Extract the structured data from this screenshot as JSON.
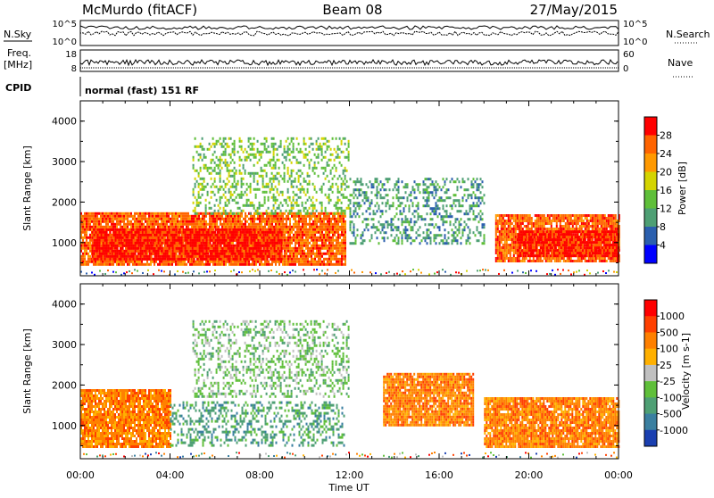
{
  "header": {
    "station": "McMurdo (fitACF)",
    "beam": "Beam 08",
    "date": "27/May/2015"
  },
  "panels": {
    "nsky_label": "N.Sky",
    "nsearch_label": "N.Search",
    "freq_label_1": "Freq.",
    "freq_label_2": "[MHz]",
    "nave_label": "Nave",
    "cpid_label": "CPID",
    "cpid_value": "normal (fast) 151 RF",
    "noise_ticks": [
      "10^5",
      "10^0"
    ],
    "freq_ticks": [
      "18",
      "8"
    ],
    "nave_ticks": [
      "60",
      "0"
    ]
  },
  "chart_data": [
    {
      "type": "heatmap",
      "name": "Power",
      "ylabel": "Slant Range [km]",
      "xlabel": "Time UT",
      "x_ticks": [
        "00:00",
        "04:00",
        "08:00",
        "12:00",
        "16:00",
        "20:00",
        "00:00"
      ],
      "y_ticks": [
        "1000",
        "2000",
        "3000",
        "4000"
      ],
      "xlim_hours": [
        0,
        24
      ],
      "ylim_km": [
        180,
        4500
      ],
      "colorbar": {
        "label": "Power [dB]",
        "ticks": [
          "4",
          "8",
          "12",
          "16",
          "20",
          "24",
          "28"
        ],
        "colors": [
          "#0000ff",
          "#2b5fae",
          "#4e9f74",
          "#5fbf3a",
          "#d4d400",
          "#ff9900",
          "#ff6400",
          "#ff0000"
        ]
      },
      "regions": [
        {
          "t0": 0.0,
          "t1": 11.8,
          "r0": 450,
          "r1": 1750,
          "level": 6
        },
        {
          "t0": 0.5,
          "t1": 9.0,
          "r0": 620,
          "r1": 1350,
          "level": 7
        },
        {
          "t0": 18.5,
          "t1": 24.0,
          "r0": 550,
          "r1": 1700,
          "level": 6
        },
        {
          "t0": 19.5,
          "t1": 24.0,
          "r0": 700,
          "r1": 1300,
          "level": 7
        },
        {
          "t0": 5.0,
          "t1": 12.0,
          "r0": 1700,
          "r1": 3600,
          "level": 3
        },
        {
          "t0": 12.0,
          "t1": 18.0,
          "r0": 1000,
          "r1": 2600,
          "level": 2
        }
      ]
    },
    {
      "type": "heatmap",
      "name": "Velocity",
      "ylabel": "Slant Range [km]",
      "xlabel": "Time UT",
      "x_ticks": [
        "00:00",
        "04:00",
        "08:00",
        "12:00",
        "16:00",
        "20:00",
        "00:00"
      ],
      "y_ticks": [
        "1000",
        "2000",
        "3000",
        "4000"
      ],
      "xlim_hours": [
        0,
        24
      ],
      "ylim_km": [
        180,
        4500
      ],
      "colorbar": {
        "label": "Velocity [m s-1]",
        "ticks": [
          "1000",
          "500",
          "100",
          "25",
          "-25",
          "-100",
          "-500",
          "-1000"
        ],
        "colors": [
          "#1a3fb0",
          "#3a7fa0",
          "#4e9f74",
          "#5fbf3a",
          "#c0c0c0",
          "#ffb000",
          "#ff8000",
          "#ff4000",
          "#ff0000"
        ]
      },
      "regions": [
        {
          "t0": 0.0,
          "t1": 4.0,
          "r0": 450,
          "r1": 1900,
          "level": 6
        },
        {
          "t0": 4.0,
          "t1": 11.8,
          "r0": 500,
          "r1": 1600,
          "level": 2
        },
        {
          "t0": 13.5,
          "t1": 17.5,
          "r0": 1000,
          "r1": 2300,
          "level": 6
        },
        {
          "t0": 18.0,
          "t1": 24.0,
          "r0": 500,
          "r1": 1700,
          "level": 6
        },
        {
          "t0": 5.0,
          "t1": 12.0,
          "r0": 1700,
          "r1": 3600,
          "level": 3
        }
      ]
    }
  ]
}
